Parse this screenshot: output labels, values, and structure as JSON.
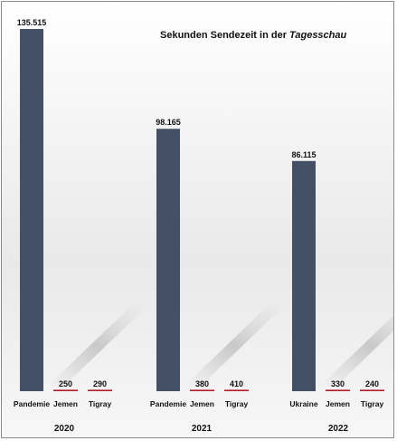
{
  "chart_data": {
    "type": "bar",
    "title": "Sekunden Sendezeit in der",
    "title_italic": "Tagesschau",
    "xlabel": "",
    "ylabel": "",
    "ylim": [
      0,
      135515
    ],
    "grid": false,
    "groups": [
      {
        "year": "2020",
        "bars": [
          {
            "category": "Pandemie",
            "value": 135515,
            "label": "135.515"
          },
          {
            "category": "Jemen",
            "value": 250,
            "label": "250"
          },
          {
            "category": "Tigray",
            "value": 290,
            "label": "290"
          }
        ]
      },
      {
        "year": "2021",
        "bars": [
          {
            "category": "Pandemie",
            "value": 98165,
            "label": "98.165"
          },
          {
            "category": "Jemen",
            "value": 380,
            "label": "380"
          },
          {
            "category": "Tigray",
            "value": 410,
            "label": "410"
          }
        ]
      },
      {
        "year": "2022",
        "bars": [
          {
            "category": "Ukraine",
            "value": 86115,
            "label": "86.115"
          },
          {
            "category": "Jemen",
            "value": 330,
            "label": "330"
          },
          {
            "category": "Tigray",
            "value": 240,
            "label": "240"
          }
        ]
      }
    ],
    "colors": {
      "main": "#435065",
      "small": "#b01e2a"
    }
  }
}
